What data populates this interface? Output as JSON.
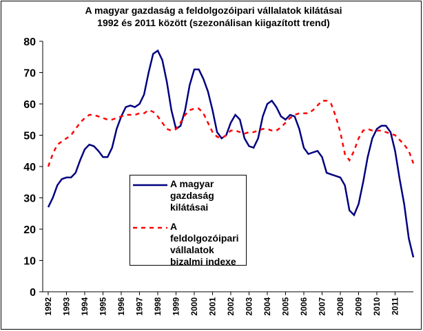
{
  "chart_data": {
    "type": "line",
    "title": "A magyar gazdaság a feldolgozóipari vállalatok kilátásai",
    "subtitle": "1992 és 2011 között (szezonálisan kiigazított trend)",
    "x": [
      1992,
      1992.25,
      1992.5,
      1992.75,
      1993,
      1993.25,
      1993.5,
      1993.75,
      1994,
      1994.25,
      1994.5,
      1994.75,
      1995,
      1995.25,
      1995.5,
      1995.75,
      1996,
      1996.25,
      1996.5,
      1996.75,
      1997,
      1997.25,
      1997.5,
      1997.75,
      1998,
      1998.25,
      1998.5,
      1998.75,
      1999,
      1999.25,
      1999.5,
      1999.75,
      2000,
      2000.25,
      2000.5,
      2000.75,
      2001,
      2001.25,
      2001.5,
      2001.75,
      2002,
      2002.25,
      2002.5,
      2002.75,
      2003,
      2003.25,
      2003.5,
      2003.75,
      2004,
      2004.25,
      2004.5,
      2004.75,
      2005,
      2005.25,
      2005.5,
      2005.75,
      2006,
      2006.25,
      2006.5,
      2006.75,
      2007,
      2007.25,
      2007.5,
      2007.75,
      2008,
      2008.25,
      2008.5,
      2008.75,
      2009,
      2009.25,
      2009.5,
      2009.75,
      2010,
      2010.25,
      2010.5,
      2010.75,
      2011,
      2011.25,
      2011.5,
      2011.75,
      2012
    ],
    "series": [
      {
        "name": "A magyar gazdaság kilátásai",
        "color": "#000080",
        "dash": false,
        "values": [
          27,
          30,
          34,
          36,
          36.5,
          36.5,
          38,
          42,
          45.5,
          47,
          46.5,
          45,
          43,
          43,
          46,
          52,
          56,
          59,
          59.5,
          59,
          60,
          63,
          70,
          76,
          77,
          74,
          67,
          58,
          52,
          53,
          58,
          66,
          71,
          71,
          68,
          64,
          58,
          51,
          49,
          50,
          54,
          56.5,
          55,
          49,
          46.5,
          46,
          49,
          56,
          60,
          61,
          59,
          56,
          55,
          56.5,
          56,
          52,
          46,
          44,
          44.5,
          45,
          43,
          38,
          37.5,
          37,
          36.5,
          34,
          26,
          24.5,
          28,
          35,
          43,
          49,
          52,
          53,
          53,
          51,
          45,
          36,
          28,
          17,
          11
        ]
      },
      {
        "name": "A feldolgozóipari vállalatok bizalmi indexe",
        "color": "#ff0000",
        "dash": true,
        "values": [
          40,
          44,
          47,
          48,
          49,
          50,
          52,
          54,
          55.5,
          56.5,
          56.5,
          56,
          55.5,
          55,
          55,
          55.5,
          56,
          56.5,
          56.5,
          56.5,
          57,
          57,
          58,
          57.5,
          56,
          54,
          52,
          51.5,
          52,
          54,
          56.5,
          58,
          58.5,
          58.5,
          57,
          54,
          51,
          49.5,
          49,
          50,
          51.5,
          51.5,
          51,
          50.5,
          51,
          51,
          51.5,
          52,
          52,
          51.5,
          51.5,
          52.5,
          54,
          55.5,
          56.5,
          57,
          57,
          57,
          58,
          59.5,
          61,
          61,
          60,
          56,
          51,
          44,
          42,
          45,
          49,
          51.5,
          52,
          51.5,
          51.5,
          51.5,
          51,
          50.5,
          50,
          48.5,
          47,
          45,
          41
        ]
      }
    ],
    "xlim": [
      1991.7,
      2012
    ],
    "xticks": [
      1992,
      1993,
      1994,
      1995,
      1996,
      1997,
      1998,
      1999,
      2000,
      2001,
      2002,
      2003,
      2004,
      2005,
      2006,
      2007,
      2008,
      2009,
      2010,
      2011
    ],
    "ylim": [
      0,
      80
    ],
    "yticks": [
      0,
      10,
      20,
      30,
      40,
      50,
      60,
      70,
      80
    ],
    "grid": false,
    "legend": "center"
  }
}
